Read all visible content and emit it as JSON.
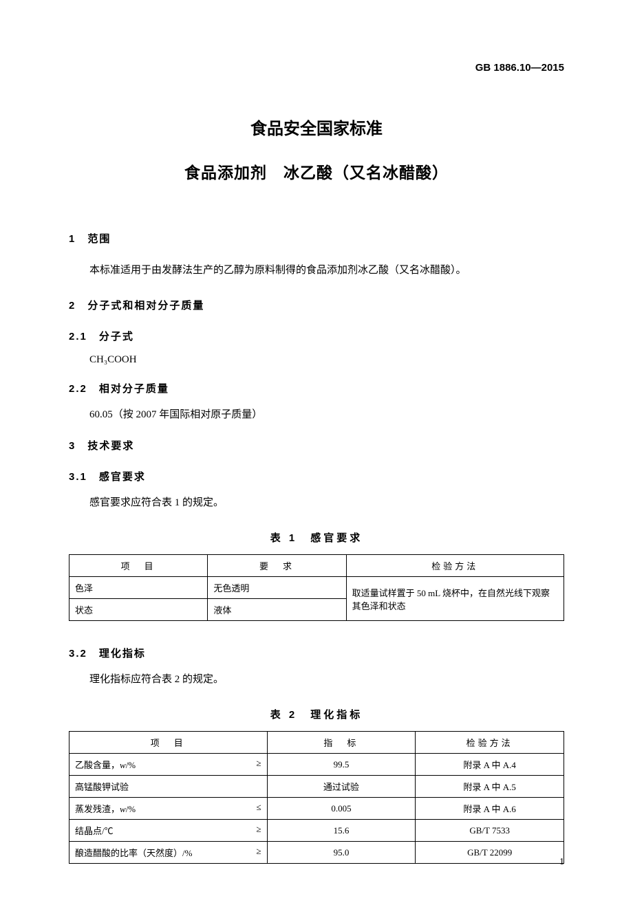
{
  "header_code": "GB 1886.10—2015",
  "titles": {
    "main": "食品安全国家标准",
    "sub": "食品添加剂　冰乙酸（又名冰醋酸）"
  },
  "sections": {
    "s1": {
      "heading": "1　范围",
      "text": "本标准适用于由发酵法生产的乙醇为原料制得的食品添加剂冰乙酸（又名冰醋酸）。"
    },
    "s2": {
      "heading": "2　分子式和相对分子质量"
    },
    "s2_1": {
      "heading": "2.1　分子式",
      "formula": "CH₃COOH"
    },
    "s2_2": {
      "heading": "2.2　相对分子质量",
      "text": "60.05（按 2007 年国际相对原子质量）"
    },
    "s3": {
      "heading": "3　技术要求"
    },
    "s3_1": {
      "heading": "3.1　感官要求",
      "text": "感官要求应符合表 1 的规定。"
    },
    "s3_2": {
      "heading": "3.2　理化指标",
      "text": "理化指标应符合表 2 的规定。"
    }
  },
  "table1": {
    "caption": "表 1　感官要求",
    "headers": {
      "c1": "项　目",
      "c2": "要　求",
      "c3": "检验方法"
    },
    "rows": [
      {
        "c1": "色泽",
        "c2": "无色透明"
      },
      {
        "c1": "状态",
        "c2": "液体"
      }
    ],
    "method": "取适量试样置于 50 mL 烧杯中，在自然光线下观察其色泽和状态"
  },
  "table2": {
    "caption": "表 2　理化指标",
    "headers": {
      "c1": "项　目",
      "c2": "指　标",
      "c3": "检验方法"
    },
    "rows": [
      {
        "name_html": "乙酸含量，<span class='italic'>w</span>/%",
        "op": "≥",
        "value": "99.5",
        "method": "附录 A 中 A.4"
      },
      {
        "name_html": "高锰酸钾试验",
        "op": "",
        "value": "通过试验",
        "method": "附录 A 中 A.5"
      },
      {
        "name_html": "蒸发残渣，<span class='italic'>w</span>/%",
        "op": "≤",
        "value": "0.005",
        "method": "附录 A 中 A.6"
      },
      {
        "name_html": "结晶点/℃",
        "op": "≥",
        "value": "15.6",
        "method": "GB/T 7533"
      },
      {
        "name_html": "酿造醋酸的比率（天然度）/%",
        "op": "≥",
        "value": "95.0",
        "method": "GB/T 22099"
      }
    ]
  },
  "page_num": "1",
  "colors": {
    "text": "#000000",
    "bg": "#ffffff",
    "border": "#000000"
  }
}
